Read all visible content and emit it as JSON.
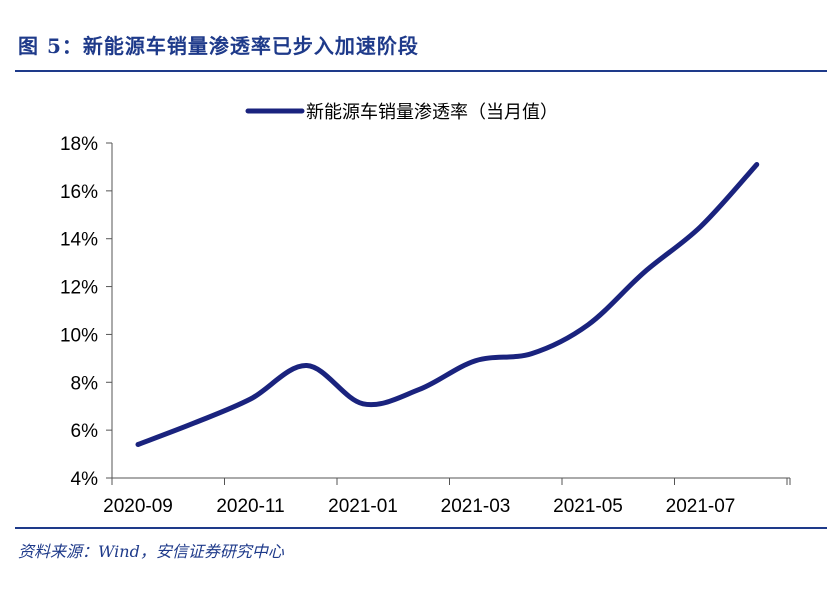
{
  "figure": {
    "title": "图 5：新能源车销量渗透率已步入加速阶段",
    "source": "资料来源：Wind，安信证券研究中心"
  },
  "colors": {
    "accent": "#1e3a8a",
    "line": "#1a237e",
    "axis": "#555555"
  },
  "chart_data": {
    "type": "line",
    "title": "",
    "xlabel": "",
    "ylabel": "",
    "x_tick_labels": [
      "2020-09",
      "2020-11",
      "2021-01",
      "2021-03",
      "2021-05",
      "2021-07"
    ],
    "y_tick_labels": [
      "4%",
      "6%",
      "8%",
      "10%",
      "12%",
      "14%",
      "16%",
      "18%"
    ],
    "ylim": [
      4,
      18
    ],
    "legend_position": "top-center",
    "grid": false,
    "series": [
      {
        "name": "新能源车销量渗透率（当月值）",
        "x": [
          "2020-09",
          "2020-10",
          "2020-11",
          "2020-12",
          "2021-01",
          "2021-02",
          "2021-03",
          "2021-04",
          "2021-05",
          "2021-06",
          "2021-07",
          "2021-08"
        ],
        "values": [
          5.4,
          6.3,
          7.3,
          8.7,
          7.1,
          7.7,
          8.9,
          9.2,
          10.4,
          12.6,
          14.5,
          17.1
        ]
      }
    ]
  }
}
